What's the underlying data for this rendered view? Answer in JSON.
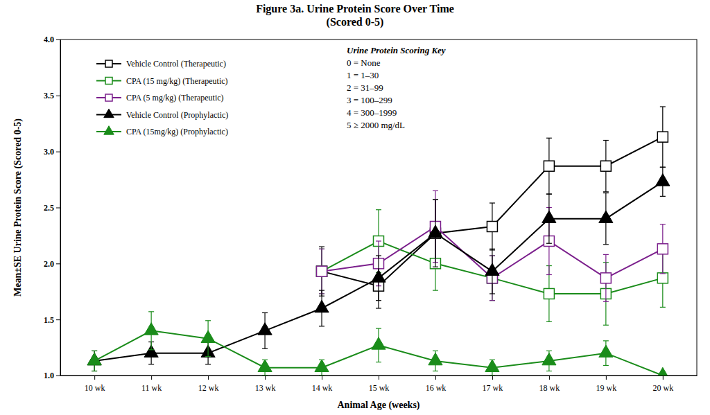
{
  "chart_data": {
    "type": "line",
    "title": "Figure 3a. Urine Protein Score Over Time",
    "subtitle": "(Scored 0-5)",
    "x_label": "Animal Age (weeks)",
    "y_label": "Mean±SE Urine Protein Score (Scored 0-5)",
    "categories": [
      "10 wk",
      "11 wk",
      "12 wk",
      "13 wk",
      "14 wk",
      "15 wk",
      "16 wk",
      "17 wk",
      "18 wk",
      "19 wk",
      "20 wk"
    ],
    "ylim": [
      1,
      4
    ],
    "yticks": [
      {
        "value": 1,
        "label": "1.0"
      },
      1.5,
      {
        "value": 2,
        "label": "2.0"
      },
      2.5,
      {
        "value": 3,
        "label": "3.0"
      },
      3.5,
      {
        "value": 4,
        "label": "4.0"
      }
    ],
    "legend": "upper left",
    "annotation": {
      "title": "Urine Protein Scoring Key",
      "lines": [
        "0 = None",
        "1 = 1–30",
        "2 = 31–99",
        "3 = 100–299",
        "4 = 300–1999",
        "5 ≥ 2000 mg/dL"
      ]
    },
    "series": [
      {
        "name": "Vehicle Control (Therapeutic)",
        "color": "#000000",
        "marker": "square-open",
        "values": [
          null,
          null,
          null,
          null,
          1.93,
          1.8,
          2.27,
          2.33,
          2.87,
          2.87,
          3.13
        ],
        "errors": [
          null,
          null,
          null,
          null,
          0.22,
          0.2,
          0.3,
          0.21,
          0.25,
          0.23,
          0.27
        ]
      },
      {
        "name": "CPA (15 mg/kg) (Therapeutic)",
        "color": "#1a8c1a",
        "marker": "square-open",
        "values": [
          null,
          null,
          null,
          null,
          1.93,
          2.2,
          2.0,
          1.87,
          1.73,
          1.73,
          1.87
        ],
        "errors": [
          null,
          null,
          null,
          null,
          0.2,
          0.28,
          0.24,
          0.2,
          0.25,
          0.28,
          0.26
        ]
      },
      {
        "name": "CPA (5 mg/kg) (Therapeutic)",
        "color": "#7b1f8c",
        "marker": "square-open",
        "values": [
          null,
          null,
          null,
          null,
          1.93,
          2.0,
          2.33,
          1.87,
          2.2,
          1.87,
          2.13
        ],
        "errors": [
          null,
          null,
          null,
          null,
          0.2,
          0.2,
          0.32,
          0.2,
          0.3,
          0.21,
          0.22
        ]
      },
      {
        "name": "Vehicle Control (Prophylactic)",
        "color": "#000000",
        "marker": "triangle",
        "values": [
          1.13,
          1.2,
          1.2,
          1.4,
          1.6,
          1.87,
          2.27,
          1.93,
          2.4,
          2.4,
          2.73
        ],
        "errors": [
          0.09,
          0.1,
          0.1,
          0.16,
          0.16,
          0.2,
          0.3,
          0.2,
          0.22,
          0.23,
          0.13
        ]
      },
      {
        "name": "CPA (15mg/kg) (Prophylactic)",
        "color": "#1a8c1a",
        "marker": "triangle",
        "values": [
          1.13,
          1.4,
          1.33,
          1.07,
          1.07,
          1.27,
          1.13,
          1.07,
          1.13,
          1.2,
          1.0
        ],
        "errors": [
          0.09,
          0.17,
          0.16,
          0.07,
          0.07,
          0.15,
          0.09,
          0.07,
          0.09,
          0.11,
          0.0
        ]
      }
    ]
  }
}
